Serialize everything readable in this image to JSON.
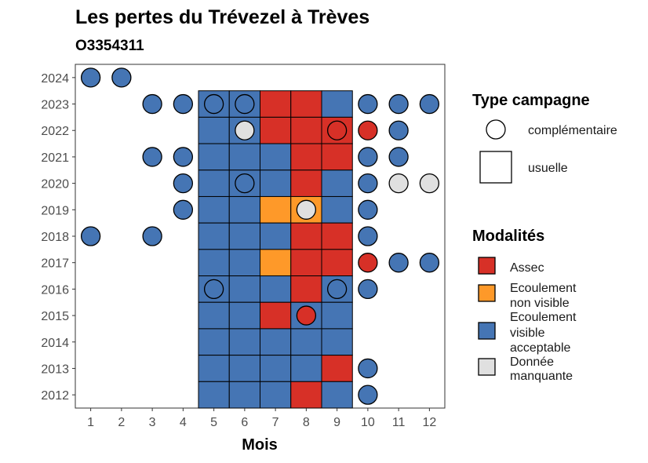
{
  "chart_data": {
    "type": "heatmap",
    "title": "Les pertes du Trévezel à Trèves",
    "subtitle": "O3354311",
    "xlabel": "Mois",
    "ylabel": "",
    "x_ticks": [
      "1",
      "2",
      "3",
      "4",
      "5",
      "6",
      "7",
      "8",
      "9",
      "10",
      "11",
      "12"
    ],
    "y_ticks": [
      "2012",
      "2013",
      "2014",
      "2015",
      "2016",
      "2017",
      "2018",
      "2019",
      "2020",
      "2021",
      "2022",
      "2023",
      "2024"
    ],
    "xlim": [
      0.5,
      12.5
    ],
    "ylim": [
      2011.5,
      2024.5
    ],
    "grid": false,
    "legend_position": "right",
    "colors": {
      "Assec": "#d73027",
      "Ecoulement non visible": "#fe9929",
      "Ecoulement visible acceptable": "#4575b4",
      "Donnée manquante": "#e0e0e0"
    },
    "legends": {
      "type_campagne": {
        "title": "Type campagne",
        "items": [
          {
            "key": "complementaire",
            "label": "complémentaire",
            "shape": "circle"
          },
          {
            "key": "usuelle",
            "label": "usuelle",
            "shape": "square"
          }
        ]
      },
      "modalites": {
        "title": "Modalités",
        "items": [
          {
            "key": "Assec",
            "label_lines": [
              "Assec"
            ]
          },
          {
            "key": "Ecoulement non visible",
            "label_lines": [
              "Ecoulement",
              "non visible"
            ]
          },
          {
            "key": "Ecoulement visible acceptable",
            "label_lines": [
              "Ecoulement",
              "visible",
              "acceptable"
            ]
          },
          {
            "key": "Donnée manquante",
            "label_lines": [
              "Donnée",
              "manquante"
            ]
          }
        ]
      }
    },
    "usuelle": [
      {
        "year": 2023,
        "months": [
          "V",
          "V",
          "A",
          "A",
          "V"
        ]
      },
      {
        "year": 2022,
        "months": [
          "V",
          "V",
          "A",
          "A",
          "A"
        ]
      },
      {
        "year": 2021,
        "months": [
          "V",
          "V",
          "V",
          "A",
          "A"
        ]
      },
      {
        "year": 2020,
        "months": [
          "V",
          "V",
          "V",
          "A",
          "V"
        ]
      },
      {
        "year": 2019,
        "months": [
          "V",
          "V",
          "N",
          "N",
          "V"
        ]
      },
      {
        "year": 2018,
        "months": [
          "V",
          "V",
          "V",
          "A",
          "A"
        ]
      },
      {
        "year": 2017,
        "months": [
          "V",
          "V",
          "N",
          "A",
          "A"
        ]
      },
      {
        "year": 2016,
        "months": [
          "V",
          "V",
          "V",
          "A",
          "V"
        ]
      },
      {
        "year": 2015,
        "months": [
          "V",
          "V",
          "A",
          "V",
          "V"
        ]
      },
      {
        "year": 2014,
        "months": [
          "V",
          "V",
          "V",
          "V",
          "V"
        ]
      },
      {
        "year": 2013,
        "months": [
          "V",
          "V",
          "V",
          "V",
          "A"
        ]
      },
      {
        "year": 2012,
        "months": [
          "V",
          "V",
          "V",
          "A",
          "V"
        ]
      }
    ],
    "usuelle_month_start": 5,
    "usuelle_codes": {
      "A": "Assec",
      "N": "Ecoulement non visible",
      "V": "Ecoulement visible acceptable",
      "M": "Donnée manquante"
    },
    "complementaire": [
      {
        "year": 2024,
        "month": 1,
        "value": "Ecoulement visible acceptable"
      },
      {
        "year": 2024,
        "month": 2,
        "value": "Ecoulement visible acceptable"
      },
      {
        "year": 2023,
        "month": 3,
        "value": "Ecoulement visible acceptable"
      },
      {
        "year": 2023,
        "month": 4,
        "value": "Ecoulement visible acceptable"
      },
      {
        "year": 2023,
        "month": 5,
        "value": "Ecoulement visible acceptable"
      },
      {
        "year": 2023,
        "month": 6,
        "value": "Ecoulement visible acceptable"
      },
      {
        "year": 2023,
        "month": 10,
        "value": "Ecoulement visible acceptable"
      },
      {
        "year": 2023,
        "month": 11,
        "value": "Ecoulement visible acceptable"
      },
      {
        "year": 2023,
        "month": 12,
        "value": "Ecoulement visible acceptable"
      },
      {
        "year": 2022,
        "month": 6,
        "value": "Donnée manquante"
      },
      {
        "year": 2022,
        "month": 9,
        "value": "Assec"
      },
      {
        "year": 2022,
        "month": 10,
        "value": "Assec"
      },
      {
        "year": 2022,
        "month": 11,
        "value": "Ecoulement visible acceptable"
      },
      {
        "year": 2021,
        "month": 3,
        "value": "Ecoulement visible acceptable"
      },
      {
        "year": 2021,
        "month": 4,
        "value": "Ecoulement visible acceptable"
      },
      {
        "year": 2021,
        "month": 10,
        "value": "Ecoulement visible acceptable"
      },
      {
        "year": 2021,
        "month": 11,
        "value": "Ecoulement visible acceptable"
      },
      {
        "year": 2020,
        "month": 4,
        "value": "Ecoulement visible acceptable"
      },
      {
        "year": 2020,
        "month": 6,
        "value": "Ecoulement visible acceptable"
      },
      {
        "year": 2020,
        "month": 10,
        "value": "Ecoulement visible acceptable"
      },
      {
        "year": 2020,
        "month": 11,
        "value": "Donnée manquante"
      },
      {
        "year": 2020,
        "month": 12,
        "value": "Donnée manquante"
      },
      {
        "year": 2019,
        "month": 4,
        "value": "Ecoulement visible acceptable"
      },
      {
        "year": 2019,
        "month": 8,
        "value": "Donnée manquante"
      },
      {
        "year": 2019,
        "month": 10,
        "value": "Ecoulement visible acceptable"
      },
      {
        "year": 2018,
        "month": 1,
        "value": "Ecoulement visible acceptable"
      },
      {
        "year": 2018,
        "month": 3,
        "value": "Ecoulement visible acceptable"
      },
      {
        "year": 2018,
        "month": 10,
        "value": "Ecoulement visible acceptable"
      },
      {
        "year": 2017,
        "month": 10,
        "value": "Assec"
      },
      {
        "year": 2017,
        "month": 11,
        "value": "Ecoulement visible acceptable"
      },
      {
        "year": 2017,
        "month": 12,
        "value": "Ecoulement visible acceptable"
      },
      {
        "year": 2016,
        "month": 5,
        "value": "Ecoulement visible acceptable"
      },
      {
        "year": 2016,
        "month": 9,
        "value": "Ecoulement visible acceptable"
      },
      {
        "year": 2016,
        "month": 10,
        "value": "Ecoulement visible acceptable"
      },
      {
        "year": 2015,
        "month": 8,
        "value": "Assec"
      },
      {
        "year": 2013,
        "month": 10,
        "value": "Ecoulement visible acceptable"
      },
      {
        "year": 2012,
        "month": 10,
        "value": "Ecoulement visible acceptable"
      }
    ]
  }
}
